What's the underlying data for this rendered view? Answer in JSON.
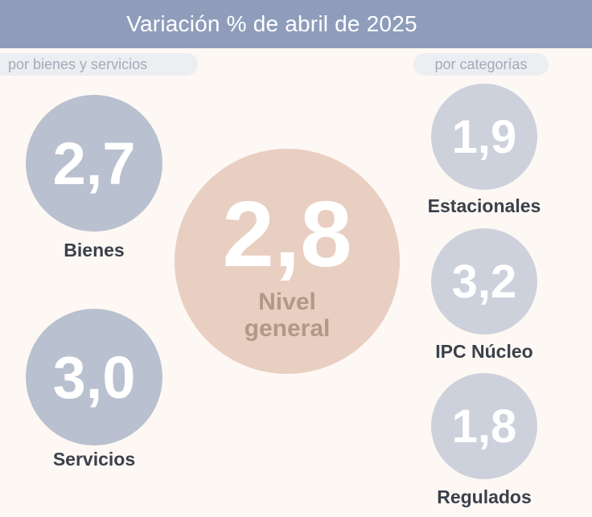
{
  "header": {
    "title": "Variación % de abril de 2025"
  },
  "tags": {
    "left": "por bienes y servicios",
    "right": "por categorías"
  },
  "bienes": {
    "value": "2,7",
    "label": "Bienes"
  },
  "servicios": {
    "value": "3,0",
    "label": "Servicios"
  },
  "general": {
    "value": "2,8",
    "label_line1": "Nivel",
    "label_line2": "general"
  },
  "estacionales": {
    "value": "1,9",
    "label": "Estacionales"
  },
  "nucleo": {
    "value": "3,2",
    "label": "IPC Núcleo"
  },
  "regulados": {
    "value": "1,8",
    "label": "Regulados"
  },
  "colors": {
    "header": "#8f9dbb",
    "background": "#fdf8f3",
    "goods_services_circle": "#b9c0cf",
    "category_circle": "#cdd1dc",
    "general_circle": "#e8cfc1",
    "general_label": "#b49886"
  }
}
